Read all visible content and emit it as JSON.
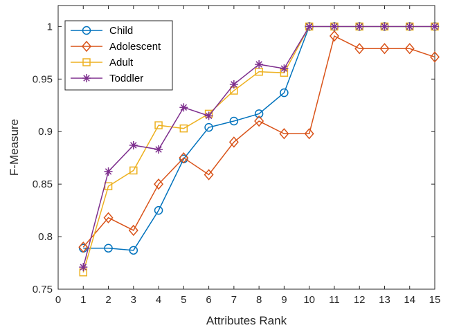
{
  "chart_data": {
    "type": "line",
    "xlabel": "Attributes Rank",
    "ylabel": "F-Measure",
    "xlim": [
      0,
      15
    ],
    "ylim": [
      0.75,
      1.02
    ],
    "xticks": [
      "0",
      "1",
      "2",
      "3",
      "4",
      "5",
      "6",
      "7",
      "8",
      "9",
      "10",
      "11",
      "12",
      "13",
      "14",
      "15"
    ],
    "yticks": [
      "0.75",
      "0.8",
      "0.85",
      "0.9",
      "0.95",
      "1"
    ],
    "grid": false,
    "legend_position": "top-left",
    "x": [
      1,
      2,
      3,
      4,
      5,
      6,
      7,
      8,
      9,
      10,
      11,
      12,
      13,
      14,
      15
    ],
    "series": [
      {
        "name": "Child",
        "color": "#0072BD",
        "marker": "circle",
        "values": [
          0.789,
          0.789,
          0.787,
          0.825,
          0.874,
          0.904,
          0.91,
          0.917,
          0.937,
          1.0,
          1.0,
          1.0,
          1.0,
          1.0,
          1.0
        ]
      },
      {
        "name": "Adolescent",
        "color": "#D95319",
        "marker": "diamond",
        "values": [
          0.79,
          0.818,
          0.806,
          0.85,
          0.875,
          0.859,
          0.89,
          0.91,
          0.898,
          0.898,
          0.991,
          0.979,
          0.979,
          0.979,
          0.971
        ]
      },
      {
        "name": "Adult",
        "color": "#EDB120",
        "marker": "square",
        "values": [
          0.766,
          0.848,
          0.863,
          0.906,
          0.903,
          0.917,
          0.939,
          0.957,
          0.956,
          1.0,
          1.0,
          1.0,
          1.0,
          1.0,
          1.0
        ]
      },
      {
        "name": "Toddler",
        "color": "#7E2F8E",
        "marker": "asterisk",
        "values": [
          0.771,
          0.862,
          0.887,
          0.883,
          0.923,
          0.915,
          0.945,
          0.964,
          0.96,
          1.0,
          1.0,
          1.0,
          1.0,
          1.0,
          1.0
        ]
      }
    ]
  }
}
